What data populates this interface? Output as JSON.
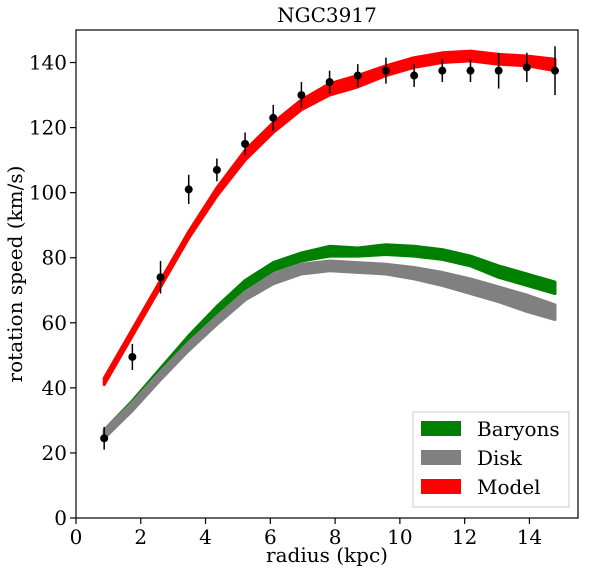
{
  "chart_data": {
    "type": "line",
    "title": "NGC3917",
    "xlabel": "radius (kpc)",
    "ylabel": "rotation speed (km/s)",
    "xlim": [
      0,
      15.5
    ],
    "ylim": [
      0,
      150
    ],
    "x_ticks": [
      0,
      2,
      4,
      6,
      8,
      10,
      12,
      14
    ],
    "y_ticks": [
      0,
      20,
      40,
      60,
      80,
      100,
      120,
      140
    ],
    "grid": false,
    "legend_position": "lower-right",
    "series": [
      {
        "name": "Baryons",
        "kind": "band",
        "color": "#008000",
        "x": [
          0.87,
          1.74,
          2.61,
          3.48,
          4.35,
          5.22,
          6.09,
          6.96,
          7.83,
          8.7,
          9.57,
          10.44,
          11.31,
          12.18,
          13.05,
          13.92,
          14.79
        ],
        "lower": [
          24.5,
          33.5,
          43.5,
          53.5,
          62.5,
          70.5,
          76,
          79,
          80.5,
          80.5,
          81,
          80.5,
          79.5,
          77.5,
          74,
          71.5,
          69
        ],
        "upper": [
          27,
          36,
          46,
          56,
          65,
          73,
          78.5,
          81.5,
          83.5,
          83,
          84,
          83.5,
          82.5,
          80.5,
          77.5,
          75,
          72.5
        ]
      },
      {
        "name": "Disk",
        "kind": "band",
        "color": "#808080",
        "x": [
          0.87,
          1.74,
          2.61,
          3.48,
          4.35,
          5.22,
          6.09,
          6.96,
          7.83,
          8.7,
          9.57,
          10.44,
          11.31,
          12.18,
          13.05,
          13.92,
          14.79
        ],
        "lower": [
          24.5,
          33,
          42.5,
          51.5,
          59.5,
          67,
          72,
          75,
          76,
          75.5,
          75,
          73.5,
          71.5,
          69,
          66.5,
          63.5,
          61
        ],
        "upper": [
          27,
          35.5,
          45,
          54,
          62,
          69.5,
          75,
          78,
          79,
          78.5,
          78,
          77,
          75.5,
          73.5,
          71,
          68.5,
          65.5
        ]
      },
      {
        "name": "Model",
        "kind": "band",
        "color": "#ff0000",
        "x": [
          0.87,
          1.74,
          2.61,
          3.48,
          4.35,
          5.22,
          6.09,
          6.96,
          7.83,
          8.7,
          9.57,
          10.44,
          11.31,
          12.18,
          13.05,
          13.92,
          14.79
        ],
        "lower": [
          41,
          56,
          71,
          86,
          99,
          110,
          118.5,
          125.5,
          130,
          132.5,
          136,
          138.5,
          140,
          140.5,
          139.5,
          139,
          137.5
        ],
        "upper": [
          43,
          58,
          73,
          88,
          101.5,
          113,
          121.5,
          128.5,
          133.5,
          136,
          139,
          141.5,
          143,
          143.5,
          142.5,
          142,
          141
        ]
      }
    ],
    "observed": {
      "color": "#000000",
      "x": [
        0.87,
        1.74,
        2.61,
        3.48,
        4.35,
        5.22,
        6.09,
        6.96,
        7.83,
        8.7,
        9.57,
        10.44,
        11.31,
        12.18,
        13.05,
        13.92,
        14.79
      ],
      "y": [
        24.5,
        49.5,
        74,
        101,
        107,
        115,
        123,
        130,
        134,
        136,
        137.5,
        136,
        137.5,
        137.5,
        137.5,
        138.5,
        137.5
      ],
      "err": [
        3.5,
        4,
        5,
        4.5,
        3.5,
        3.5,
        4,
        4,
        3.5,
        3.5,
        4,
        3.5,
        3.5,
        3.5,
        5.5,
        4.5,
        7.5
      ]
    }
  }
}
